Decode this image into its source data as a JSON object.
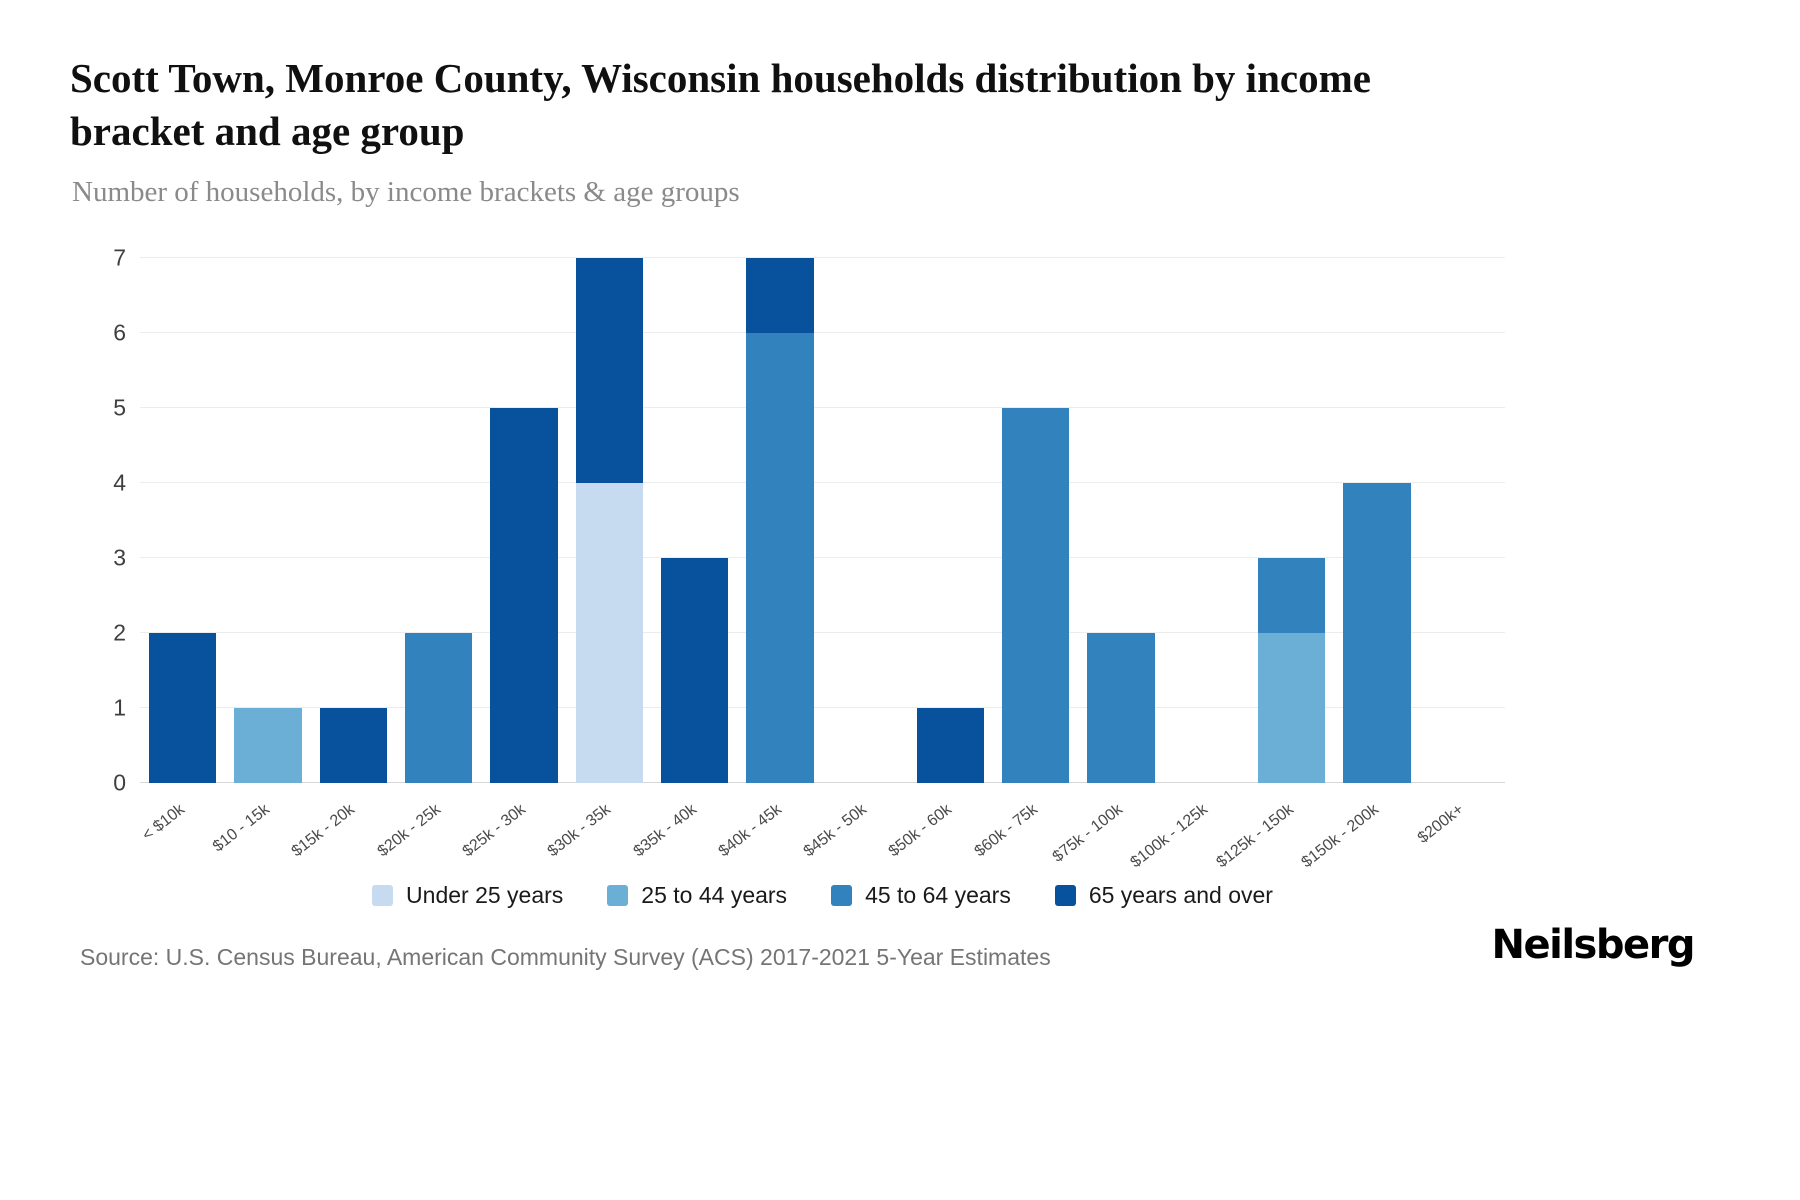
{
  "chart_data": {
    "type": "bar",
    "stacked": true,
    "title": "Scott Town, Monroe County, Wisconsin households distribution by income bracket and age group",
    "subtitle": "Number of households, by income brackets & age groups",
    "categories": [
      "< $10k",
      "$10 - 15k",
      "$15k - 20k",
      "$20k - 25k",
      "$25k - 30k",
      "$30k - 35k",
      "$35k - 40k",
      "$40k - 45k",
      "$45k - 50k",
      "$50k - 60k",
      "$60k - 75k",
      "$75k - 100k",
      "$100k - 125k",
      "$125k - 150k",
      "$150k - 200k",
      "$200k+"
    ],
    "series": [
      {
        "name": "Under 25 years",
        "color": "#c6dbef",
        "values": [
          0,
          0,
          0,
          0,
          0,
          4,
          0,
          0,
          0,
          0,
          0,
          0,
          0,
          0,
          0,
          0
        ]
      },
      {
        "name": "25 to 44 years",
        "color": "#6baed6",
        "values": [
          0,
          1,
          0,
          0,
          0,
          0,
          0,
          0,
          0,
          0,
          0,
          0,
          0,
          2,
          0,
          0
        ]
      },
      {
        "name": "45 to 64 years",
        "color": "#3182bd",
        "values": [
          0,
          0,
          0,
          2,
          0,
          0,
          0,
          6,
          0,
          0,
          5,
          2,
          0,
          1,
          4,
          0
        ]
      },
      {
        "name": "65 years and over",
        "color": "#08519c",
        "values": [
          2,
          0,
          1,
          0,
          5,
          3,
          3,
          1,
          0,
          1,
          0,
          0,
          0,
          0,
          0,
          0
        ]
      }
    ],
    "totals": [
      2,
      1,
      1,
      2,
      5,
      7,
      3,
      7,
      0,
      1,
      5,
      2,
      0,
      3,
      4,
      0
    ],
    "xlabel": "",
    "ylabel": "",
    "ylim": [
      0,
      7
    ],
    "yticks": [
      0,
      1,
      2,
      3,
      4,
      5,
      6,
      7
    ],
    "grid": true,
    "legend_position": "bottom"
  },
  "footer": {
    "source": "Source: U.S. Census Bureau, American Community Survey (ACS) 2017-2021 5-Year Estimates",
    "logo": "Neilsberg"
  }
}
